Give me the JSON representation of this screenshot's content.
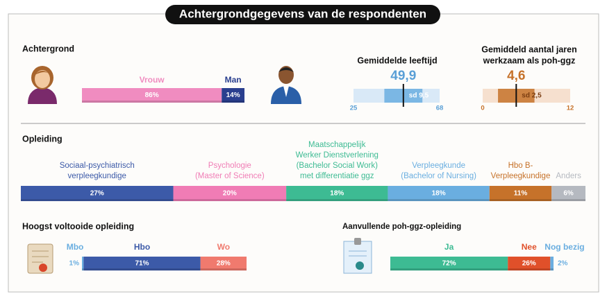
{
  "title": "Achtergrondgegevens van de respondenten",
  "background": {
    "heading": "Achtergrond",
    "gender": {
      "segments": [
        {
          "label": "Vrouw",
          "value": 86,
          "value_label": "86%",
          "color": "#f08cc0"
        },
        {
          "label": "Man",
          "value": 14,
          "value_label": "14%",
          "color": "#2a3f8f"
        }
      ]
    },
    "age": {
      "title_lines": [
        "Gemiddelde leeftijd"
      ],
      "mean": {
        "value": 49.9,
        "label": "49,9"
      },
      "sd": {
        "value": 9.5,
        "label": "sd 9,5"
      },
      "xlim": [
        25,
        68
      ],
      "track_color": "#d9e9f7",
      "band_color": "#6aaee0",
      "color": "#5a9fd6"
    },
    "years": {
      "title_lines": [
        "Gemiddeld aantal jaren",
        "werkzaam als poh-ggz"
      ],
      "mean": {
        "value": 4.6,
        "label": "4,6"
      },
      "sd": {
        "value": 2.5,
        "label": "sd 2,5"
      },
      "xlim": [
        0,
        12
      ],
      "track_color": "#f6e0cf",
      "band_color": "#c6722a",
      "color": "#c6722a"
    }
  },
  "education": {
    "heading": "Opleiding",
    "segments": [
      {
        "label_lines": [
          "Sociaal-psychiatrisch",
          "verpleegkundige"
        ],
        "value": 27,
        "value_label": "27%",
        "color": "#3c5aa8"
      },
      {
        "label_lines": [
          "Psychologie",
          "(Master of Science)"
        ],
        "value": 20,
        "value_label": "20%",
        "color": "#f07cb5"
      },
      {
        "label_lines": [
          "Maatschappelijk",
          "Werker Dienstverlening",
          "(Bachelor Social Work)",
          "met differentiatie ggz"
        ],
        "value": 18,
        "value_label": "18%",
        "color": "#3dbb93"
      },
      {
        "label_lines": [
          "Verpleegkunde",
          "(Bachelor of Nursing)"
        ],
        "value": 18,
        "value_label": "18%",
        "color": "#6aaee0"
      },
      {
        "label_lines": [
          "Hbo B-",
          "Verpleegkundige"
        ],
        "value": 11,
        "value_label": "11%",
        "color": "#c6722a"
      },
      {
        "label_lines": [
          "Anders"
        ],
        "value": 6,
        "value_label": "6%",
        "color": "#b5b9c0"
      }
    ]
  },
  "highest": {
    "heading": "Hoogst voltooide opleiding",
    "segments": [
      {
        "label": "Mbo",
        "value": 1,
        "value_label": "1%",
        "color": "#6aaee0"
      },
      {
        "label": "Hbo",
        "value": 71,
        "value_label": "71%",
        "color": "#3c5aa8"
      },
      {
        "label": "Wo",
        "value": 28,
        "value_label": "28%",
        "color": "#f07a6e"
      }
    ]
  },
  "additional": {
    "heading": "Aanvullende poh-ggz-opleiding",
    "segments": [
      {
        "label": "Ja",
        "value": 72,
        "value_label": "72%",
        "color": "#3dbb93"
      },
      {
        "label": "Nee",
        "value": 26,
        "value_label": "26%",
        "color": "#e0502a"
      },
      {
        "label": "Nog bezig",
        "value": 2,
        "value_label": "2%",
        "color": "#6aaee0"
      }
    ]
  }
}
